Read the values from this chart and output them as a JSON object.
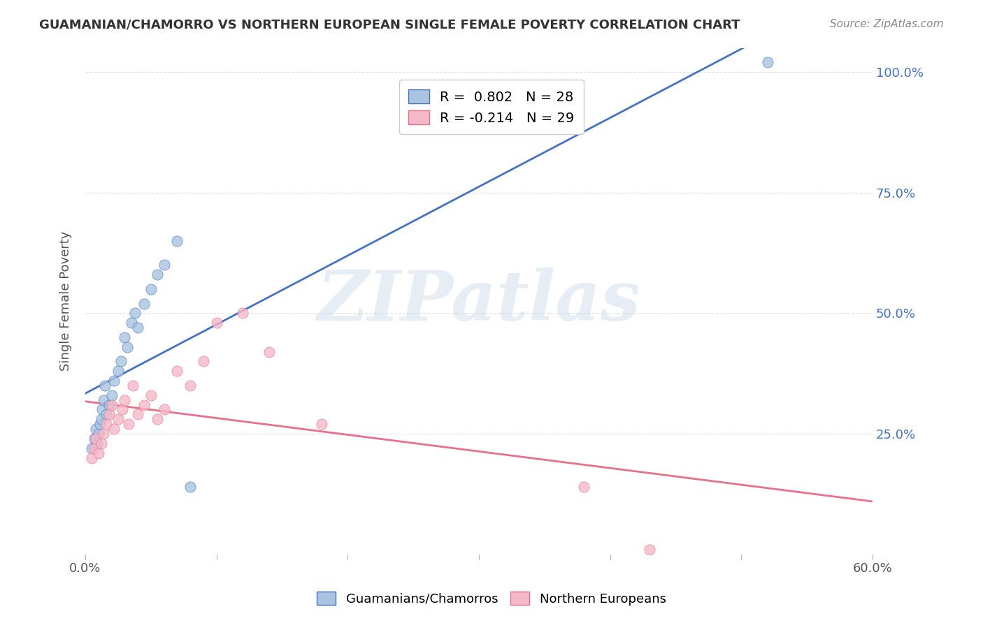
{
  "title": "GUAMANIAN/CHAMORRO VS NORTHERN EUROPEAN SINGLE FEMALE POVERTY CORRELATION CHART",
  "source": "Source: ZipAtlas.com",
  "xlabel": "",
  "ylabel": "Single Female Poverty",
  "xlim": [
    0,
    0.6
  ],
  "ylim": [
    0,
    1.05
  ],
  "xticks": [
    0.0,
    0.1,
    0.2,
    0.3,
    0.4,
    0.5,
    0.6
  ],
  "xtick_labels": [
    "0.0%",
    "",
    "",
    "",
    "",
    "",
    "60.0%"
  ],
  "ytick_labels_right": [
    "25.0%",
    "50.0%",
    "75.0%",
    "100.0%"
  ],
  "ytick_vals_right": [
    0.25,
    0.5,
    0.75,
    1.0
  ],
  "blue_R": 0.802,
  "blue_N": 28,
  "pink_R": -0.214,
  "pink_N": 29,
  "blue_color": "#a8c4e0",
  "blue_line_color": "#4472c4",
  "pink_color": "#f4b8c8",
  "pink_line_color": "#e8708a",
  "blue_label": "Guamanians/Chamorros",
  "pink_label": "Northern Europeans",
  "watermark": "ZIPatlas",
  "background_color": "#ffffff",
  "grid_color": "#e0e0e0",
  "blue_x": [
    0.005,
    0.007,
    0.008,
    0.009,
    0.01,
    0.011,
    0.012,
    0.013,
    0.014,
    0.015,
    0.016,
    0.018,
    0.02,
    0.022,
    0.025,
    0.027,
    0.03,
    0.032,
    0.035,
    0.038,
    0.04,
    0.045,
    0.05,
    0.055,
    0.06,
    0.07,
    0.08,
    0.52
  ],
  "blue_y": [
    0.22,
    0.24,
    0.26,
    0.23,
    0.25,
    0.27,
    0.28,
    0.3,
    0.32,
    0.35,
    0.29,
    0.31,
    0.33,
    0.36,
    0.38,
    0.4,
    0.45,
    0.43,
    0.48,
    0.5,
    0.47,
    0.52,
    0.55,
    0.58,
    0.6,
    0.65,
    0.14,
    1.02
  ],
  "pink_x": [
    0.005,
    0.007,
    0.008,
    0.01,
    0.012,
    0.014,
    0.016,
    0.018,
    0.02,
    0.022,
    0.025,
    0.028,
    0.03,
    0.033,
    0.036,
    0.04,
    0.045,
    0.05,
    0.055,
    0.06,
    0.07,
    0.08,
    0.09,
    0.1,
    0.12,
    0.14,
    0.18,
    0.38,
    0.43
  ],
  "pink_y": [
    0.2,
    0.22,
    0.24,
    0.21,
    0.23,
    0.25,
    0.27,
    0.29,
    0.31,
    0.26,
    0.28,
    0.3,
    0.32,
    0.27,
    0.35,
    0.29,
    0.31,
    0.33,
    0.28,
    0.3,
    0.38,
    0.35,
    0.4,
    0.48,
    0.5,
    0.42,
    0.27,
    0.14,
    0.01
  ]
}
